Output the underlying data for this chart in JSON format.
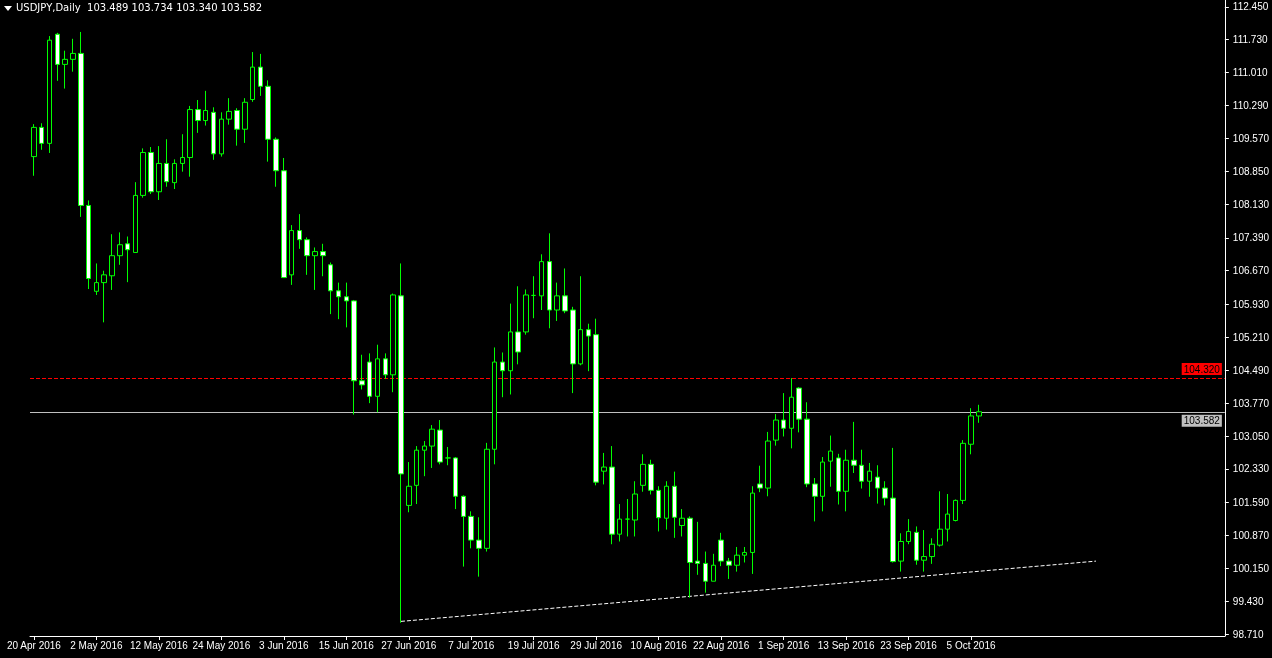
{
  "chart_data": {
    "type": "candlestick",
    "title": "USDJPY,Daily  103.489 103.734 103.340 103.582",
    "categories": [
      "20 Apr 2016",
      null,
      null,
      null,
      null,
      null,
      null,
      null,
      "2 May 2016",
      null,
      null,
      null,
      null,
      null,
      null,
      null,
      "12 May 2016",
      null,
      null,
      null,
      null,
      null,
      null,
      null,
      "24 May 2016",
      null,
      null,
      null,
      null,
      null,
      null,
      null,
      "3 Jun 2016",
      null,
      null,
      null,
      null,
      null,
      null,
      null,
      "15 Jun 2016",
      null,
      null,
      null,
      null,
      null,
      null,
      null,
      "27 Jun 2016",
      null,
      null,
      null,
      null,
      null,
      null,
      null,
      "7 Jul 2016",
      null,
      null,
      null,
      null,
      null,
      null,
      null,
      "19 Jul 2016",
      null,
      null,
      null,
      null,
      null,
      null,
      null,
      "29 Jul 2016",
      null,
      null,
      null,
      null,
      null,
      null,
      null,
      "10 Aug 2016",
      null,
      null,
      null,
      null,
      null,
      null,
      null,
      "22 Aug 2016",
      null,
      null,
      null,
      null,
      null,
      null,
      null,
      "1 Sep 2016",
      null,
      null,
      null,
      null,
      null,
      null,
      null,
      "13 Sep 2016",
      null,
      null,
      null,
      null,
      null,
      null,
      null,
      "23 Sep 2016",
      null,
      null,
      null,
      null,
      null,
      null,
      null,
      "5 Oct 2016",
      null,
      null,
      null,
      null,
      null,
      null,
      null,
      null,
      null,
      null,
      null,
      null,
      null,
      null,
      null,
      null,
      null,
      null,
      null,
      null,
      null,
      null,
      null,
      null,
      null,
      null,
      null,
      null,
      null,
      null,
      null,
      null
    ],
    "ylim": [
      98.67,
      112.6
    ],
    "yticks": [
      {
        "value": 112.45,
        "label": "112.450"
      },
      {
        "value": 111.73,
        "label": "111.730"
      },
      {
        "value": 111.01,
        "label": "111.010"
      },
      {
        "value": 110.29,
        "label": "110.290"
      },
      {
        "value": 109.57,
        "label": "109.570"
      },
      {
        "value": 108.85,
        "label": "108.850"
      },
      {
        "value": 108.13,
        "label": "108.130"
      },
      {
        "value": 107.39,
        "label": "107.390"
      },
      {
        "value": 106.67,
        "label": "106.670"
      },
      {
        "value": 105.93,
        "label": "105.930"
      },
      {
        "value": 105.21,
        "label": "105.210"
      },
      {
        "value": 104.49,
        "label": "104.490"
      },
      {
        "value": 103.77,
        "label": "103.770"
      },
      {
        "value": 103.05,
        "label": "103.050"
      },
      {
        "value": 102.33,
        "label": "102.330"
      },
      {
        "value": 101.59,
        "label": "101.590"
      },
      {
        "value": 100.87,
        "label": "100.870"
      },
      {
        "value": 100.15,
        "label": "100.150"
      },
      {
        "value": 99.43,
        "label": "99.430"
      },
      {
        "value": 98.71,
        "label": "98.710"
      }
    ],
    "grid": false,
    "series": [
      {
        "type": "candlestick",
        "color": "#00ff00",
        "ohlc": [
          [
            109.17,
            109.88,
            108.75,
            109.81
          ],
          [
            109.81,
            109.9,
            109.32,
            109.46
          ],
          [
            109.46,
            111.81,
            109.25,
            111.72
          ],
          [
            111.85,
            111.88,
            110.83,
            111.19
          ],
          [
            111.19,
            111.49,
            110.66,
            111.3
          ],
          [
            111.3,
            111.75,
            111.03,
            111.43
          ],
          [
            111.43,
            111.9,
            107.85,
            108.1
          ],
          [
            108.1,
            108.21,
            106.27,
            106.5
          ],
          [
            106.22,
            106.83,
            106.14,
            106.41
          ],
          [
            106.41,
            106.67,
            105.54,
            106.58
          ],
          [
            106.56,
            107.47,
            106.25,
            107.0
          ],
          [
            107.0,
            107.51,
            106.8,
            107.24
          ],
          [
            107.26,
            107.42,
            106.42,
            107.13
          ],
          [
            107.07,
            108.61,
            107.07,
            108.32
          ],
          [
            108.32,
            109.35,
            108.27,
            109.26
          ],
          [
            109.26,
            109.38,
            108.35,
            108.4
          ],
          [
            108.4,
            109.4,
            108.22,
            109.02
          ],
          [
            109.02,
            109.55,
            108.51,
            108.62
          ],
          [
            108.6,
            109.11,
            108.46,
            109.02
          ],
          [
            109.02,
            109.66,
            108.84,
            109.15
          ],
          [
            109.15,
            110.28,
            108.73,
            110.2
          ],
          [
            110.2,
            110.41,
            109.69,
            109.96
          ],
          [
            109.96,
            110.61,
            109.85,
            110.18
          ],
          [
            110.14,
            110.25,
            109.1,
            109.23
          ],
          [
            109.23,
            110.14,
            109.17,
            109.99
          ],
          [
            109.99,
            110.45,
            109.87,
            110.16
          ],
          [
            110.18,
            110.23,
            109.41,
            109.77
          ],
          [
            109.77,
            110.45,
            109.47,
            110.36
          ],
          [
            110.42,
            111.46,
            110.37,
            111.13
          ],
          [
            111.13,
            111.42,
            110.5,
            110.71
          ],
          [
            110.71,
            110.84,
            109.06,
            109.55
          ],
          [
            109.55,
            109.59,
            108.51,
            108.86
          ],
          [
            108.86,
            109.14,
            106.52,
            106.52
          ],
          [
            106.58,
            107.67,
            106.36,
            107.55
          ],
          [
            107.55,
            107.91,
            107.15,
            107.35
          ],
          [
            107.35,
            107.4,
            106.58,
            107.0
          ],
          [
            107.0,
            107.18,
            106.25,
            107.09
          ],
          [
            107.09,
            107.26,
            106.55,
            107.0
          ],
          [
            106.8,
            106.85,
            105.72,
            106.23
          ],
          [
            106.23,
            106.41,
            105.61,
            106.1
          ],
          [
            106.1,
            106.41,
            105.43,
            106.01
          ],
          [
            106.01,
            106.03,
            103.52,
            104.26
          ],
          [
            104.26,
            104.83,
            104.07,
            104.17
          ],
          [
            104.67,
            104.86,
            103.77,
            103.92
          ],
          [
            103.92,
            105.05,
            103.57,
            104.74
          ],
          [
            104.74,
            104.86,
            104.3,
            104.39
          ],
          [
            104.39,
            106.17,
            104.01,
            106.14
          ],
          [
            106.12,
            106.83,
            98.96,
            102.22
          ],
          [
            101.53,
            102.48,
            101.38,
            101.95
          ],
          [
            101.97,
            102.83,
            101.56,
            102.74
          ],
          [
            102.74,
            102.94,
            102.17,
            102.83
          ],
          [
            102.83,
            103.29,
            102.35,
            103.2
          ],
          [
            103.18,
            103.4,
            102.43,
            102.48
          ],
          [
            102.57,
            102.81,
            102.41,
            102.57
          ],
          [
            102.57,
            102.59,
            101.45,
            101.73
          ],
          [
            101.73,
            101.75,
            100.19,
            101.29
          ],
          [
            101.29,
            101.4,
            100.59,
            100.77
          ],
          [
            100.77,
            101.27,
            99.97,
            100.59
          ],
          [
            100.59,
            102.9,
            100.52,
            102.76
          ],
          [
            102.76,
            104.99,
            102.43,
            104.67
          ],
          [
            104.67,
            104.88,
            103.9,
            104.48
          ],
          [
            104.48,
            105.95,
            103.96,
            105.33
          ],
          [
            105.33,
            106.33,
            104.62,
            104.89
          ],
          [
            105.33,
            106.26,
            105.27,
            106.14
          ],
          [
            106.13,
            106.55,
            105.63,
            106.13
          ],
          [
            106.12,
            107.03,
            105.81,
            106.87
          ],
          [
            106.87,
            107.49,
            105.41,
            105.81
          ],
          [
            105.81,
            106.41,
            105.57,
            106.12
          ],
          [
            106.12,
            106.72,
            105.74,
            105.79
          ],
          [
            105.81,
            105.88,
            103.99,
            104.63
          ],
          [
            104.63,
            106.55,
            104.6,
            105.38
          ],
          [
            105.38,
            105.51,
            104.47,
            105.24
          ],
          [
            105.27,
            105.62,
            101.97,
            102.04
          ],
          [
            102.28,
            102.68,
            101.99,
            102.37
          ],
          [
            102.37,
            102.83,
            100.68,
            100.9
          ],
          [
            100.9,
            101.56,
            100.74,
            101.23
          ],
          [
            101.23,
            101.67,
            100.85,
            101.23
          ],
          [
            101.21,
            102.06,
            100.85,
            101.78
          ],
          [
            101.97,
            102.65,
            101.83,
            102.43
          ],
          [
            102.43,
            102.53,
            101.77,
            101.86
          ],
          [
            101.86,
            101.95,
            100.96,
            101.26
          ],
          [
            101.25,
            102.06,
            101.0,
            101.95
          ],
          [
            101.95,
            102.27,
            100.82,
            101.27
          ],
          [
            101.09,
            101.45,
            100.85,
            101.25
          ],
          [
            101.25,
            101.29,
            99.51,
            100.28
          ],
          [
            100.31,
            101.17,
            100.01,
            100.26
          ],
          [
            100.26,
            100.52,
            99.62,
            99.87
          ],
          [
            99.87,
            100.47,
            99.87,
            100.22
          ],
          [
            100.77,
            100.93,
            100.2,
            100.31
          ],
          [
            100.31,
            100.38,
            99.92,
            100.22
          ],
          [
            100.22,
            100.62,
            100.08,
            100.44
          ],
          [
            100.44,
            100.62,
            100.28,
            100.5
          ],
          [
            100.5,
            101.95,
            100.03,
            101.8
          ],
          [
            102.0,
            102.4,
            101.82,
            101.91
          ],
          [
            101.91,
            103.14,
            101.73,
            102.94
          ],
          [
            102.96,
            103.53,
            102.84,
            103.4
          ],
          [
            103.4,
            103.99,
            103.04,
            103.22
          ],
          [
            103.22,
            104.32,
            102.78,
            103.9
          ],
          [
            104.1,
            104.12,
            103.13,
            103.42
          ],
          [
            103.42,
            103.79,
            101.93,
            102.0
          ],
          [
            102.0,
            102.13,
            101.18,
            101.73
          ],
          [
            101.73,
            102.59,
            101.4,
            102.48
          ],
          [
            102.5,
            103.06,
            101.94,
            102.72
          ],
          [
            102.57,
            102.66,
            101.55,
            101.84
          ],
          [
            101.84,
            102.75,
            101.4,
            102.52
          ],
          [
            102.52,
            103.36,
            102.24,
            102.41
          ],
          [
            102.41,
            102.75,
            101.9,
            102.06
          ],
          [
            102.06,
            102.46,
            101.72,
            102.28
          ],
          [
            102.15,
            102.41,
            101.57,
            101.91
          ],
          [
            101.91,
            102.06,
            101.53,
            101.69
          ],
          [
            101.69,
            102.79,
            100.28,
            100.3
          ],
          [
            100.31,
            100.92,
            100.08,
            100.74
          ],
          [
            100.74,
            101.23,
            100.68,
            100.96
          ],
          [
            100.94,
            101.07,
            100.23,
            100.33
          ],
          [
            100.33,
            100.99,
            100.08,
            100.41
          ],
          [
            100.41,
            100.81,
            100.25,
            100.68
          ],
          [
            100.66,
            101.84,
            100.63,
            101.01
          ],
          [
            101.01,
            101.78,
            100.74,
            101.34
          ],
          [
            101.2,
            101.66,
            101.18,
            101.64
          ],
          [
            101.64,
            102.96,
            101.56,
            102.89
          ],
          [
            102.87,
            103.66,
            102.65,
            103.49
          ],
          [
            103.489,
            103.734,
            103.34,
            103.582
          ],
          null,
          null,
          null,
          null,
          null,
          null,
          null,
          null,
          null,
          null,
          null,
          null,
          null,
          null,
          null,
          null,
          null,
          null,
          null,
          null,
          null,
          null,
          null,
          null,
          null,
          null,
          null,
          null,
          null,
          null,
          null
        ]
      },
      {
        "type": "line",
        "color": "#ffffff",
        "line_style": "dashed",
        "marker": "none",
        "values": [
          null,
          null,
          null,
          null,
          null,
          null,
          null,
          null,
          null,
          null,
          null,
          null,
          null,
          null,
          null,
          null,
          null,
          null,
          null,
          null,
          null,
          null,
          null,
          null,
          null,
          null,
          null,
          null,
          null,
          null,
          null,
          null,
          null,
          null,
          null,
          null,
          null,
          null,
          null,
          null,
          null,
          null,
          null,
          null,
          null,
          null,
          null,
          98.99,
          null,
          null,
          null,
          null,
          null,
          null,
          null,
          null,
          null,
          null,
          null,
          null,
          null,
          null,
          null,
          null,
          null,
          null,
          null,
          null,
          null,
          null,
          null,
          null,
          null,
          null,
          null,
          null,
          null,
          null,
          null,
          null,
          null,
          null,
          null,
          null,
          null,
          null,
          null,
          null,
          null,
          null,
          null,
          null,
          null,
          null,
          null,
          null,
          null,
          null,
          null,
          null,
          null,
          null,
          null,
          null,
          null,
          null,
          null,
          null,
          null,
          null,
          null,
          null,
          null,
          null,
          null,
          null,
          null,
          null,
          null,
          null,
          null,
          null,
          null,
          null,
          null,
          null,
          null,
          null,
          null,
          null,
          null,
          null,
          null,
          null,
          null,
          null,
          100.31,
          null,
          null,
          null,
          null,
          null,
          null,
          null,
          null,
          null,
          null,
          null,
          null,
          null,
          null,
          null,
          null
        ]
      }
    ],
    "ref_lines": [
      {
        "axis": "y",
        "value": 104.32,
        "label": "104.320",
        "color": "#ff0000",
        "line_style": "dashed"
      },
      {
        "axis": "y",
        "value": 103.582,
        "label": "103.582",
        "color": "#c0c0c0",
        "line_style": "solid"
      }
    ]
  }
}
